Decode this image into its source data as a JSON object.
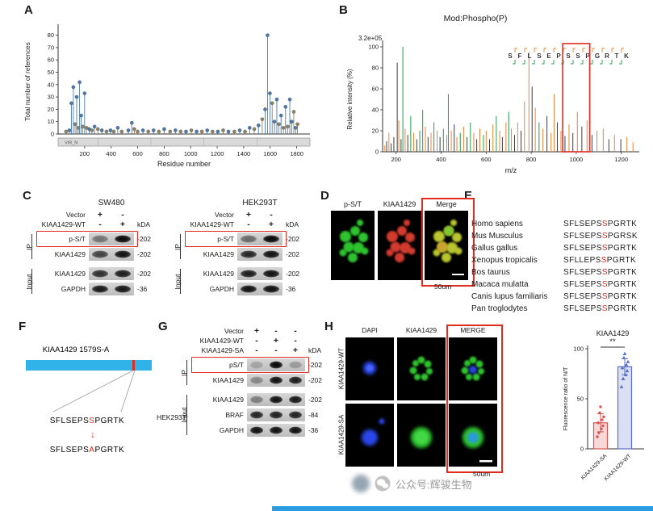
{
  "panels": {
    "a": {
      "label": "A"
    },
    "b": {
      "label": "B"
    },
    "c": {
      "label": "C",
      "blots": [
        {
          "cell_line": "SW480",
          "kda": "kDA",
          "conditions": [
            {
              "name": "Vector",
              "signs": [
                "+",
                "-"
              ]
            },
            {
              "name": "KIAA1429-WT",
              "signs": [
                "-",
                "+"
              ]
            }
          ],
          "groups": [
            {
              "name": "IP",
              "rows": [
                {
                  "label": "p-S/T",
                  "size": "-202",
                  "boxed": true,
                  "lanes": [
                    0.45,
                    1
                  ]
                },
                {
                  "label": "KIAA1429",
                  "size": "-202",
                  "lanes": [
                    0.7,
                    0.95
                  ]
                }
              ]
            },
            {
              "name": "Input",
              "rows": [
                {
                  "label": "KIAA1429",
                  "size": "-202",
                  "lanes": [
                    0.8,
                    0.9
                  ]
                },
                {
                  "label": "GAPDH",
                  "size": "-36",
                  "lanes": [
                    0.92,
                    0.92
                  ]
                }
              ]
            }
          ]
        },
        {
          "cell_line": "HEK293T",
          "kda": "kDA",
          "conditions": [
            {
              "name": "Vector",
              "signs": [
                "+",
                "-"
              ]
            },
            {
              "name": "KIAA1429-WT",
              "signs": [
                "-",
                "+"
              ]
            }
          ],
          "groups": [
            {
              "name": "IP",
              "rows": [
                {
                  "label": "p-S/T",
                  "size": "-202",
                  "boxed": true,
                  "lanes": [
                    0.5,
                    1
                  ]
                },
                {
                  "label": "KIAA1429",
                  "size": "-202",
                  "lanes": [
                    0.85,
                    0.95
                  ]
                }
              ]
            },
            {
              "name": "Input",
              "rows": [
                {
                  "label": "KIAA1429",
                  "size": "-202",
                  "lanes": [
                    0.9,
                    0.95
                  ]
                },
                {
                  "label": "GAPDH",
                  "size": "-36",
                  "lanes": [
                    0.95,
                    0.95
                  ]
                }
              ]
            }
          ]
        }
      ]
    },
    "d": {
      "label": "D",
      "image_labels": [
        "p-S/T",
        "KIAA1429",
        "Merge"
      ],
      "scale": "50um"
    },
    "e": {
      "label": "E",
      "alignment": [
        {
          "species": "Homo sapiens",
          "pre": "SFLSEPS",
          "site": "S",
          "post": "PGRTK"
        },
        {
          "species": "Mus Musculus",
          "pre": "SFLSEPS",
          "site": "S",
          "post": "PGRSK"
        },
        {
          "species": "Gallus gallus",
          "pre": "SFLSEPS",
          "site": "S",
          "post": "PGRTK"
        },
        {
          "species": "Xenopus tropicalis",
          "pre": "SFLLEPS",
          "site": "S",
          "post": "PGRTK"
        },
        {
          "species": "Bos taurus",
          "pre": "SFLSEPS",
          "site": "S",
          "post": "PGRTK"
        },
        {
          "species": "Macaca mulatta",
          "pre": "SFLSEPS",
          "site": "S",
          "post": "PGRTK"
        },
        {
          "species": "Canis lupus familiaris",
          "pre": "SFLSEPS",
          "site": "S",
          "post": "PGRTK"
        },
        {
          "species": "Pan troglodytes",
          "pre": "SFLSEPS",
          "site": "S",
          "post": "PGRTK"
        }
      ]
    },
    "f": {
      "label": "F",
      "title": "KIAA1429 1579S-A",
      "seq_wt": {
        "pre": "SFLSEPS",
        "site": "S",
        "post": "PGRTK"
      },
      "seq_mut": {
        "pre": "SFLSEPS",
        "site": "A",
        "post": "PGRTK"
      }
    },
    "g": {
      "label": "G",
      "cell_line": "HEK293T",
      "kda": "kDA",
      "conditions": [
        {
          "name": "Vector",
          "signs": [
            "+",
            "-",
            "-"
          ]
        },
        {
          "name": "KIAA1429-WT",
          "signs": [
            "-",
            "+",
            "-"
          ]
        },
        {
          "name": "KIAA1429-SA",
          "signs": [
            "-",
            "-",
            "+"
          ]
        }
      ],
      "groups": [
        {
          "name": "IP",
          "rows": [
            {
              "label": "pS/T",
              "size": "-202",
              "boxed": true,
              "lanes": [
                0.2,
                1,
                0.25
              ]
            },
            {
              "label": "KIAA1429",
              "size": "-202",
              "lanes": [
                0.35,
                0.95,
                0.9
              ]
            }
          ]
        },
        {
          "name": "Input",
          "rows": [
            {
              "label": "KIAA1429",
              "size": "-202",
              "lanes": [
                0.4,
                0.95,
                0.92
              ]
            },
            {
              "label": "BRAF",
              "size": "-84",
              "lanes": [
                0.85,
                0.88,
                0.86
              ]
            },
            {
              "label": "GAPDH",
              "size": "-36",
              "lanes": [
                0.95,
                0.95,
                0.95
              ]
            }
          ]
        }
      ]
    },
    "h": {
      "label": "H",
      "columns": [
        "DAPI",
        "KIAA1429",
        "MERGE"
      ],
      "rows": [
        "KIAA1429-WT",
        "KIAA1429-SA"
      ],
      "scale": "50um"
    }
  },
  "chart_data": [
    {
      "type": "scatter",
      "title": "",
      "xlabel": "Residue number",
      "ylabel": "Total number of references",
      "xlim": [
        0,
        1900
      ],
      "ylim": [
        0,
        85
      ],
      "xticks": [
        200,
        400,
        600,
        800,
        1000,
        1200,
        1400,
        1600,
        1800
      ],
      "yticks": [
        0,
        10,
        20,
        30,
        40,
        50,
        60,
        70,
        80
      ],
      "domain_bar_label": "VIR_N",
      "colors": [
        "#4e79a7",
        "#8a8265"
      ],
      "points": [
        [
          60,
          2,
          1
        ],
        [
          85,
          3,
          0
        ],
        [
          100,
          25,
          0
        ],
        [
          115,
          38,
          0
        ],
        [
          128,
          8,
          1
        ],
        [
          140,
          30,
          0
        ],
        [
          152,
          5,
          1
        ],
        [
          162,
          42,
          0
        ],
        [
          174,
          15,
          0
        ],
        [
          186,
          6,
          1
        ],
        [
          200,
          33,
          0
        ],
        [
          214,
          5,
          1
        ],
        [
          235,
          4,
          0
        ],
        [
          255,
          3,
          1
        ],
        [
          275,
          6,
          0
        ],
        [
          300,
          4,
          1
        ],
        [
          330,
          3,
          0
        ],
        [
          365,
          2,
          1
        ],
        [
          395,
          3,
          0
        ],
        [
          420,
          2,
          1
        ],
        [
          450,
          5,
          0
        ],
        [
          480,
          2,
          1
        ],
        [
          530,
          3,
          0
        ],
        [
          556,
          9,
          0
        ],
        [
          575,
          4,
          1
        ],
        [
          600,
          2,
          1
        ],
        [
          640,
          3,
          0
        ],
        [
          680,
          2,
          1
        ],
        [
          720,
          3,
          0
        ],
        [
          760,
          2,
          1
        ],
        [
          800,
          4,
          0
        ],
        [
          845,
          2,
          1
        ],
        [
          885,
          3,
          0
        ],
        [
          925,
          2,
          1
        ],
        [
          965,
          2,
          0
        ],
        [
          1005,
          3,
          1
        ],
        [
          1045,
          2,
          0
        ],
        [
          1085,
          2,
          1
        ],
        [
          1125,
          3,
          0
        ],
        [
          1165,
          2,
          1
        ],
        [
          1205,
          2,
          0
        ],
        [
          1245,
          3,
          1
        ],
        [
          1285,
          2,
          0
        ],
        [
          1330,
          2,
          1
        ],
        [
          1370,
          3,
          0
        ],
        [
          1410,
          2,
          1
        ],
        [
          1445,
          5,
          0
        ],
        [
          1480,
          4,
          1
        ],
        [
          1512,
          7,
          0
        ],
        [
          1540,
          12,
          1
        ],
        [
          1562,
          20,
          0
        ],
        [
          1580,
          80,
          0
        ],
        [
          1598,
          33,
          0
        ],
        [
          1615,
          25,
          1
        ],
        [
          1632,
          10,
          0
        ],
        [
          1650,
          28,
          0
        ],
        [
          1666,
          8,
          1
        ],
        [
          1682,
          15,
          0
        ],
        [
          1700,
          5,
          1
        ],
        [
          1716,
          22,
          0
        ],
        [
          1732,
          6,
          1
        ],
        [
          1748,
          28,
          0
        ],
        [
          1762,
          10,
          0
        ],
        [
          1778,
          18,
          1
        ],
        [
          1792,
          5,
          0
        ],
        [
          1806,
          8,
          1
        ]
      ]
    },
    {
      "type": "spectrum",
      "title": "Mod:Phospho(P)",
      "annotation": "3.2e+05",
      "xlabel": "m/z",
      "ylabel": "Relative intensity (%)",
      "xlim": [
        140,
        1280
      ],
      "ylim": [
        0,
        100
      ],
      "xticks": [
        200,
        400,
        600,
        800,
        1000,
        1200
      ],
      "yticks": [
        0,
        20,
        40,
        60,
        80,
        100
      ],
      "sequence": "SFLSEPSSPGRTK",
      "highlight_box": [
        940,
        1060
      ],
      "colors": {
        "b": "#1f9e50",
        "y": "#e8833a",
        "n": "#3c3c3c"
      },
      "peaks": [
        [
          150,
          6,
          "y"
        ],
        [
          158,
          10,
          "n"
        ],
        [
          168,
          18,
          "y"
        ],
        [
          178,
          8,
          "n"
        ],
        [
          190,
          14,
          "n"
        ],
        [
          205,
          85,
          "n"
        ],
        [
          212,
          30,
          "y"
        ],
        [
          222,
          12,
          "n"
        ],
        [
          230,
          100,
          "b"
        ],
        [
          240,
          22,
          "y"
        ],
        [
          252,
          16,
          "n"
        ],
        [
          265,
          34,
          "b"
        ],
        [
          278,
          18,
          "y"
        ],
        [
          292,
          12,
          "n"
        ],
        [
          305,
          20,
          "b"
        ],
        [
          318,
          40,
          "b"
        ],
        [
          330,
          24,
          "y"
        ],
        [
          342,
          14,
          "n"
        ],
        [
          355,
          18,
          "y"
        ],
        [
          368,
          28,
          "b"
        ],
        [
          382,
          20,
          "y"
        ],
        [
          395,
          14,
          "n"
        ],
        [
          410,
          22,
          "b"
        ],
        [
          425,
          16,
          "y"
        ],
        [
          432,
          55,
          "b"
        ],
        [
          445,
          20,
          "y"
        ],
        [
          458,
          26,
          "n"
        ],
        [
          470,
          14,
          "y"
        ],
        [
          485,
          18,
          "b"
        ],
        [
          500,
          24,
          "y"
        ],
        [
          515,
          14,
          "n"
        ],
        [
          530,
          28,
          "b"
        ],
        [
          545,
          18,
          "y"
        ],
        [
          558,
          12,
          "n"
        ],
        [
          572,
          22,
          "y"
        ],
        [
          588,
          16,
          "b"
        ],
        [
          600,
          20,
          "y"
        ],
        [
          615,
          12,
          "n"
        ],
        [
          630,
          26,
          "y"
        ],
        [
          645,
          34,
          "b"
        ],
        [
          660,
          20,
          "y"
        ],
        [
          672,
          14,
          "n"
        ],
        [
          688,
          28,
          "y"
        ],
        [
          700,
          38,
          "b"
        ],
        [
          712,
          22,
          "y"
        ],
        [
          726,
          16,
          "n"
        ],
        [
          740,
          28,
          "y"
        ],
        [
          755,
          20,
          "n"
        ],
        [
          770,
          48,
          "y"
        ],
        [
          790,
          95,
          "y"
        ],
        [
          804,
          62,
          "n"
        ],
        [
          818,
          42,
          "y"
        ],
        [
          835,
          28,
          "b"
        ],
        [
          852,
          22,
          "y"
        ],
        [
          870,
          34,
          "n"
        ],
        [
          888,
          18,
          "y"
        ],
        [
          902,
          55,
          "y"
        ],
        [
          916,
          28,
          "n"
        ],
        [
          932,
          20,
          "y"
        ],
        [
          950,
          15,
          "n"
        ],
        [
          968,
          26,
          "y"
        ],
        [
          985,
          18,
          "n"
        ],
        [
          1005,
          38,
          "y"
        ],
        [
          1025,
          24,
          "n"
        ],
        [
          1048,
          30,
          "y"
        ],
        [
          1070,
          16,
          "n"
        ],
        [
          1092,
          20,
          "y"
        ],
        [
          1120,
          22,
          "y"
        ],
        [
          1145,
          12,
          "n"
        ],
        [
          1170,
          16,
          "y"
        ],
        [
          1198,
          12,
          "n"
        ],
        [
          1225,
          14,
          "y"
        ],
        [
          1252,
          9,
          "y"
        ]
      ]
    },
    {
      "type": "bar",
      "title": "KIAA1429",
      "ylabel": "Fluorescence ratio of N/T",
      "ylim": [
        0,
        100
      ],
      "yticks": [
        0,
        50,
        100
      ],
      "categories": [
        "KIAA1429-SA",
        "KIAA1429-WT"
      ],
      "values": [
        26,
        82
      ],
      "errors": [
        9,
        8
      ],
      "points": [
        [
          12,
          16,
          20,
          23,
          26,
          29,
          32,
          36,
          42
        ],
        [
          62,
          70,
          74,
          78,
          81,
          84,
          87,
          91,
          95
        ]
      ],
      "significance": "**",
      "colors": [
        "#d9534f",
        "#5a6fc7"
      ]
    }
  ],
  "watermark": {
    "text": "公众号:辉骏生物"
  }
}
